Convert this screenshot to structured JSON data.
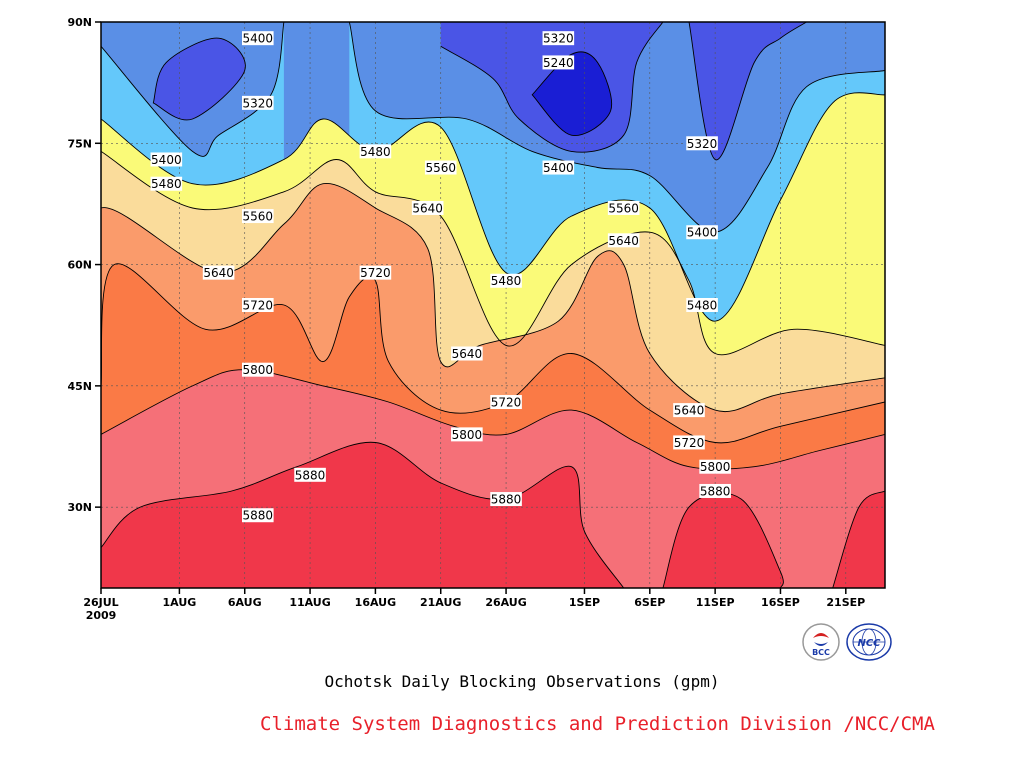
{
  "chart_data": {
    "type": "contour",
    "title": "Ochotsk Daily Blocking Observations (gpm)",
    "credit": "Climate System Diagnostics and Prediction Division /NCC/CMA",
    "x_start": "2009-07-26",
    "x_end": "2009-09-24",
    "x_ticks": [
      {
        "date": "2009-07-26",
        "label": "26JUL",
        "sublabel": "2009"
      },
      {
        "date": "2009-08-01",
        "label": "1AUG"
      },
      {
        "date": "2009-08-06",
        "label": "6AUG"
      },
      {
        "date": "2009-08-11",
        "label": "11AUG"
      },
      {
        "date": "2009-08-16",
        "label": "16AUG"
      },
      {
        "date": "2009-08-21",
        "label": "21AUG"
      },
      {
        "date": "2009-08-26",
        "label": "26AUG"
      },
      {
        "date": "2009-09-01",
        "label": "1SEP"
      },
      {
        "date": "2009-09-06",
        "label": "6SEP"
      },
      {
        "date": "2009-09-11",
        "label": "11SEP"
      },
      {
        "date": "2009-09-16",
        "label": "16SEP"
      },
      {
        "date": "2009-09-21",
        "label": "21SEP"
      }
    ],
    "ylim": [
      20,
      90
    ],
    "y_ticks": [
      {
        "value": 30,
        "label": "30N"
      },
      {
        "value": 45,
        "label": "45N"
      },
      {
        "value": 60,
        "label": "60N"
      },
      {
        "value": 75,
        "label": "75N"
      },
      {
        "value": 90,
        "label": "90N"
      }
    ],
    "grid": true,
    "levels": [
      5240,
      5320,
      5400,
      5480,
      5560,
      5640,
      5720,
      5800,
      5880
    ],
    "fill_colors": {
      "below_5240": "#1a1ed4",
      "5240_5320": "#4a55e6",
      "5320_5400": "#5a8fe6",
      "5400_5480": "#64c8fa",
      "5480_5560": "#fafa78",
      "5560_5640": "#fadc9b",
      "5640_5720": "#fa9b6b",
      "5720_5800": "#fa7a46",
      "5800_5880": "#f57078",
      "above_5880": "#f0374a"
    },
    "contours": [
      {
        "level": 5880,
        "points": [
          [
            "2009-07-26",
            25
          ],
          [
            "2009-07-29",
            30
          ],
          [
            "2009-08-05",
            32
          ],
          [
            "2009-08-10",
            35
          ],
          [
            "2009-08-16",
            38
          ],
          [
            "2009-08-21",
            33
          ],
          [
            "2009-08-26",
            31
          ],
          [
            "2009-08-31",
            35
          ],
          [
            "2009-09-01",
            27
          ],
          [
            "2009-09-04",
            20
          ]
        ]
      },
      {
        "level": 5880,
        "points": [
          [
            "2009-09-07",
            20
          ],
          [
            "2009-09-09",
            30
          ],
          [
            "2009-09-13",
            31
          ],
          [
            "2009-09-16",
            22
          ],
          [
            "2009-09-16",
            20
          ]
        ]
      },
      {
        "level": 5880,
        "points": [
          [
            "2009-09-20",
            20
          ],
          [
            "2009-09-22",
            30
          ],
          [
            "2009-09-24",
            32
          ]
        ]
      },
      {
        "level": 5800,
        "points": [
          [
            "2009-07-26",
            39
          ],
          [
            "2009-08-02",
            45
          ],
          [
            "2009-08-06",
            47
          ],
          [
            "2009-08-12",
            45
          ],
          [
            "2009-08-17",
            43
          ],
          [
            "2009-08-22",
            40
          ],
          [
            "2009-08-26",
            39
          ],
          [
            "2009-08-31",
            42
          ],
          [
            "2009-09-05",
            38
          ],
          [
            "2009-09-09",
            35
          ],
          [
            "2009-09-14",
            35
          ],
          [
            "2009-09-19",
            37
          ],
          [
            "2009-09-24",
            39
          ]
        ]
      },
      {
        "level": 5720,
        "points": [
          [
            "2009-07-26",
            45
          ],
          [
            "2009-07-27",
            60
          ],
          [
            "2009-08-03",
            52
          ],
          [
            "2009-08-09",
            55
          ],
          [
            "2009-08-12",
            48
          ],
          [
            "2009-08-14",
            56
          ],
          [
            "2009-08-16",
            58
          ],
          [
            "2009-08-17",
            48
          ],
          [
            "2009-08-21",
            42
          ],
          [
            "2009-08-26",
            43
          ],
          [
            "2009-08-31",
            49
          ],
          [
            "2009-09-06",
            42
          ],
          [
            "2009-09-11",
            38
          ],
          [
            "2009-09-16",
            40
          ],
          [
            "2009-09-24",
            43
          ]
        ]
      },
      {
        "level": 5640,
        "points": [
          [
            "2009-07-26",
            54
          ],
          [
            "2009-07-26",
            67
          ],
          [
            "2009-08-04",
            59
          ],
          [
            "2009-08-09",
            65
          ],
          [
            "2009-08-12",
            70
          ],
          [
            "2009-08-16",
            67
          ],
          [
            "2009-08-20",
            62
          ],
          [
            "2009-08-21",
            48
          ],
          [
            "2009-08-24",
            50
          ],
          [
            "2009-08-30",
            53
          ],
          [
            "2009-09-02",
            61
          ],
          [
            "2009-09-04",
            60
          ],
          [
            "2009-09-06",
            49
          ],
          [
            "2009-09-11",
            42
          ],
          [
            "2009-09-16",
            44
          ],
          [
            "2009-09-24",
            46
          ]
        ]
      },
      {
        "level": 5560,
        "points": [
          [
            "2009-07-26",
            74
          ],
          [
            "2009-08-02",
            67
          ],
          [
            "2009-08-09",
            69
          ],
          [
            "2009-08-13",
            73
          ],
          [
            "2009-08-16",
            69
          ],
          [
            "2009-08-21",
            66
          ],
          [
            "2009-08-26",
            50
          ],
          [
            "2009-08-31",
            60
          ],
          [
            "2009-09-06",
            64
          ],
          [
            "2009-09-09",
            58
          ],
          [
            "2009-09-11",
            49
          ],
          [
            "2009-09-17",
            52
          ],
          [
            "2009-09-24",
            50
          ]
        ]
      },
      {
        "level": 5480,
        "points": [
          [
            "2009-07-26",
            78
          ],
          [
            "2009-08-02",
            70
          ],
          [
            "2009-08-09",
            73
          ],
          [
            "2009-08-12",
            78
          ],
          [
            "2009-08-16",
            74
          ],
          [
            "2009-08-21",
            77
          ],
          [
            "2009-08-26",
            59
          ],
          [
            "2009-08-31",
            66
          ],
          [
            "2009-09-06",
            67
          ],
          [
            "2009-09-11",
            53
          ],
          [
            "2009-09-16",
            68
          ],
          [
            "2009-09-20",
            80
          ],
          [
            "2009-09-24",
            81
          ]
        ]
      },
      {
        "level": 5400,
        "points": [
          [
            "2009-07-26",
            87
          ],
          [
            "2009-08-02",
            74
          ],
          [
            "2009-08-04",
            76
          ],
          [
            "2009-08-08",
            81
          ],
          [
            "2009-08-09",
            90
          ]
        ]
      },
      {
        "level": 5400,
        "points": [
          [
            "2009-08-14",
            90
          ],
          [
            "2009-08-16",
            79
          ],
          [
            "2009-08-23",
            78
          ],
          [
            "2009-08-28",
            74
          ],
          [
            "2009-09-02",
            72
          ],
          [
            "2009-09-06",
            71
          ],
          [
            "2009-09-11",
            64
          ],
          [
            "2009-09-15",
            72
          ],
          [
            "2009-09-18",
            82
          ],
          [
            "2009-09-24",
            84
          ]
        ]
      },
      {
        "level": 5320,
        "points": [
          [
            "2009-08-21",
            87
          ],
          [
            "2009-08-25",
            83
          ],
          [
            "2009-08-27",
            78
          ],
          [
            "2009-08-31",
            74
          ],
          [
            "2009-09-04",
            76
          ],
          [
            "2009-09-05",
            85
          ],
          [
            "2009-09-07",
            90
          ]
        ]
      },
      {
        "level": 5320,
        "points": [
          [
            "2009-09-09",
            90
          ],
          [
            "2009-09-11",
            73
          ],
          [
            "2009-09-14",
            85
          ],
          [
            "2009-09-16",
            88
          ],
          [
            "2009-09-18",
            90
          ]
        ]
      },
      {
        "level": 5320,
        "points": [
          [
            "2009-07-30",
            80
          ],
          [
            "2009-08-02",
            78
          ],
          [
            "2009-08-06",
            84
          ],
          [
            "2009-08-04",
            88
          ],
          [
            "2009-07-31",
            85
          ],
          [
            "2009-07-30",
            80
          ]
        ]
      },
      {
        "level": 5240,
        "points": [
          [
            "2009-08-28",
            81
          ],
          [
            "2009-08-31",
            86
          ],
          [
            "2009-09-02",
            85
          ],
          [
            "2009-09-03",
            79
          ],
          [
            "2009-08-31",
            76
          ],
          [
            "2009-08-28",
            81
          ]
        ]
      }
    ],
    "labels": [
      {
        "date": "2009-08-07",
        "lat": 88,
        "text": "5400"
      },
      {
        "date": "2009-08-07",
        "lat": 80,
        "text": "5320"
      },
      {
        "date": "2009-07-31",
        "lat": 73,
        "text": "5400"
      },
      {
        "date": "2009-07-31",
        "lat": 70,
        "text": "5480"
      },
      {
        "date": "2009-08-07",
        "lat": 66,
        "text": "5560"
      },
      {
        "date": "2009-08-04",
        "lat": 59,
        "text": "5640"
      },
      {
        "date": "2009-08-07",
        "lat": 55,
        "text": "5720"
      },
      {
        "date": "2009-08-07",
        "lat": 47,
        "text": "5800"
      },
      {
        "date": "2009-08-11",
        "lat": 34,
        "text": "5880"
      },
      {
        "date": "2009-08-07",
        "lat": 29,
        "text": "5880"
      },
      {
        "date": "2009-08-16",
        "lat": 74,
        "text": "5480"
      },
      {
        "date": "2009-08-16",
        "lat": 59,
        "text": "5720"
      },
      {
        "date": "2009-08-21",
        "lat": 72,
        "text": "5560"
      },
      {
        "date": "2009-08-20",
        "lat": 67,
        "text": "5640"
      },
      {
        "date": "2009-08-23",
        "lat": 49,
        "text": "5640"
      },
      {
        "date": "2009-08-26",
        "lat": 43,
        "text": "5720"
      },
      {
        "date": "2009-08-23",
        "lat": 39,
        "text": "5800"
      },
      {
        "date": "2009-08-26",
        "lat": 31,
        "text": "5880"
      },
      {
        "date": "2009-08-26",
        "lat": 58,
        "text": "5480"
      },
      {
        "date": "2009-08-30",
        "lat": 88,
        "text": "5320"
      },
      {
        "date": "2009-08-30",
        "lat": 85,
        "text": "5240"
      },
      {
        "date": "2009-08-30",
        "lat": 72,
        "text": "5400"
      },
      {
        "date": "2009-09-04",
        "lat": 67,
        "text": "5560"
      },
      {
        "date": "2009-09-04",
        "lat": 63,
        "text": "5640"
      },
      {
        "date": "2009-09-10",
        "lat": 75,
        "text": "5320"
      },
      {
        "date": "2009-09-10",
        "lat": 64,
        "text": "5400"
      },
      {
        "date": "2009-09-10",
        "lat": 55,
        "text": "5480"
      },
      {
        "date": "2009-09-09",
        "lat": 42,
        "text": "5640"
      },
      {
        "date": "2009-09-09",
        "lat": 38,
        "text": "5720"
      },
      {
        "date": "2009-09-11",
        "lat": 35,
        "text": "5800"
      },
      {
        "date": "2009-09-11",
        "lat": 32,
        "text": "5880"
      }
    ]
  },
  "logos": {
    "bcc": {
      "text": "BCC",
      "color": "#1a3aa8"
    },
    "ncc": {
      "text": "NCC",
      "color": "#1a3aa8"
    }
  }
}
